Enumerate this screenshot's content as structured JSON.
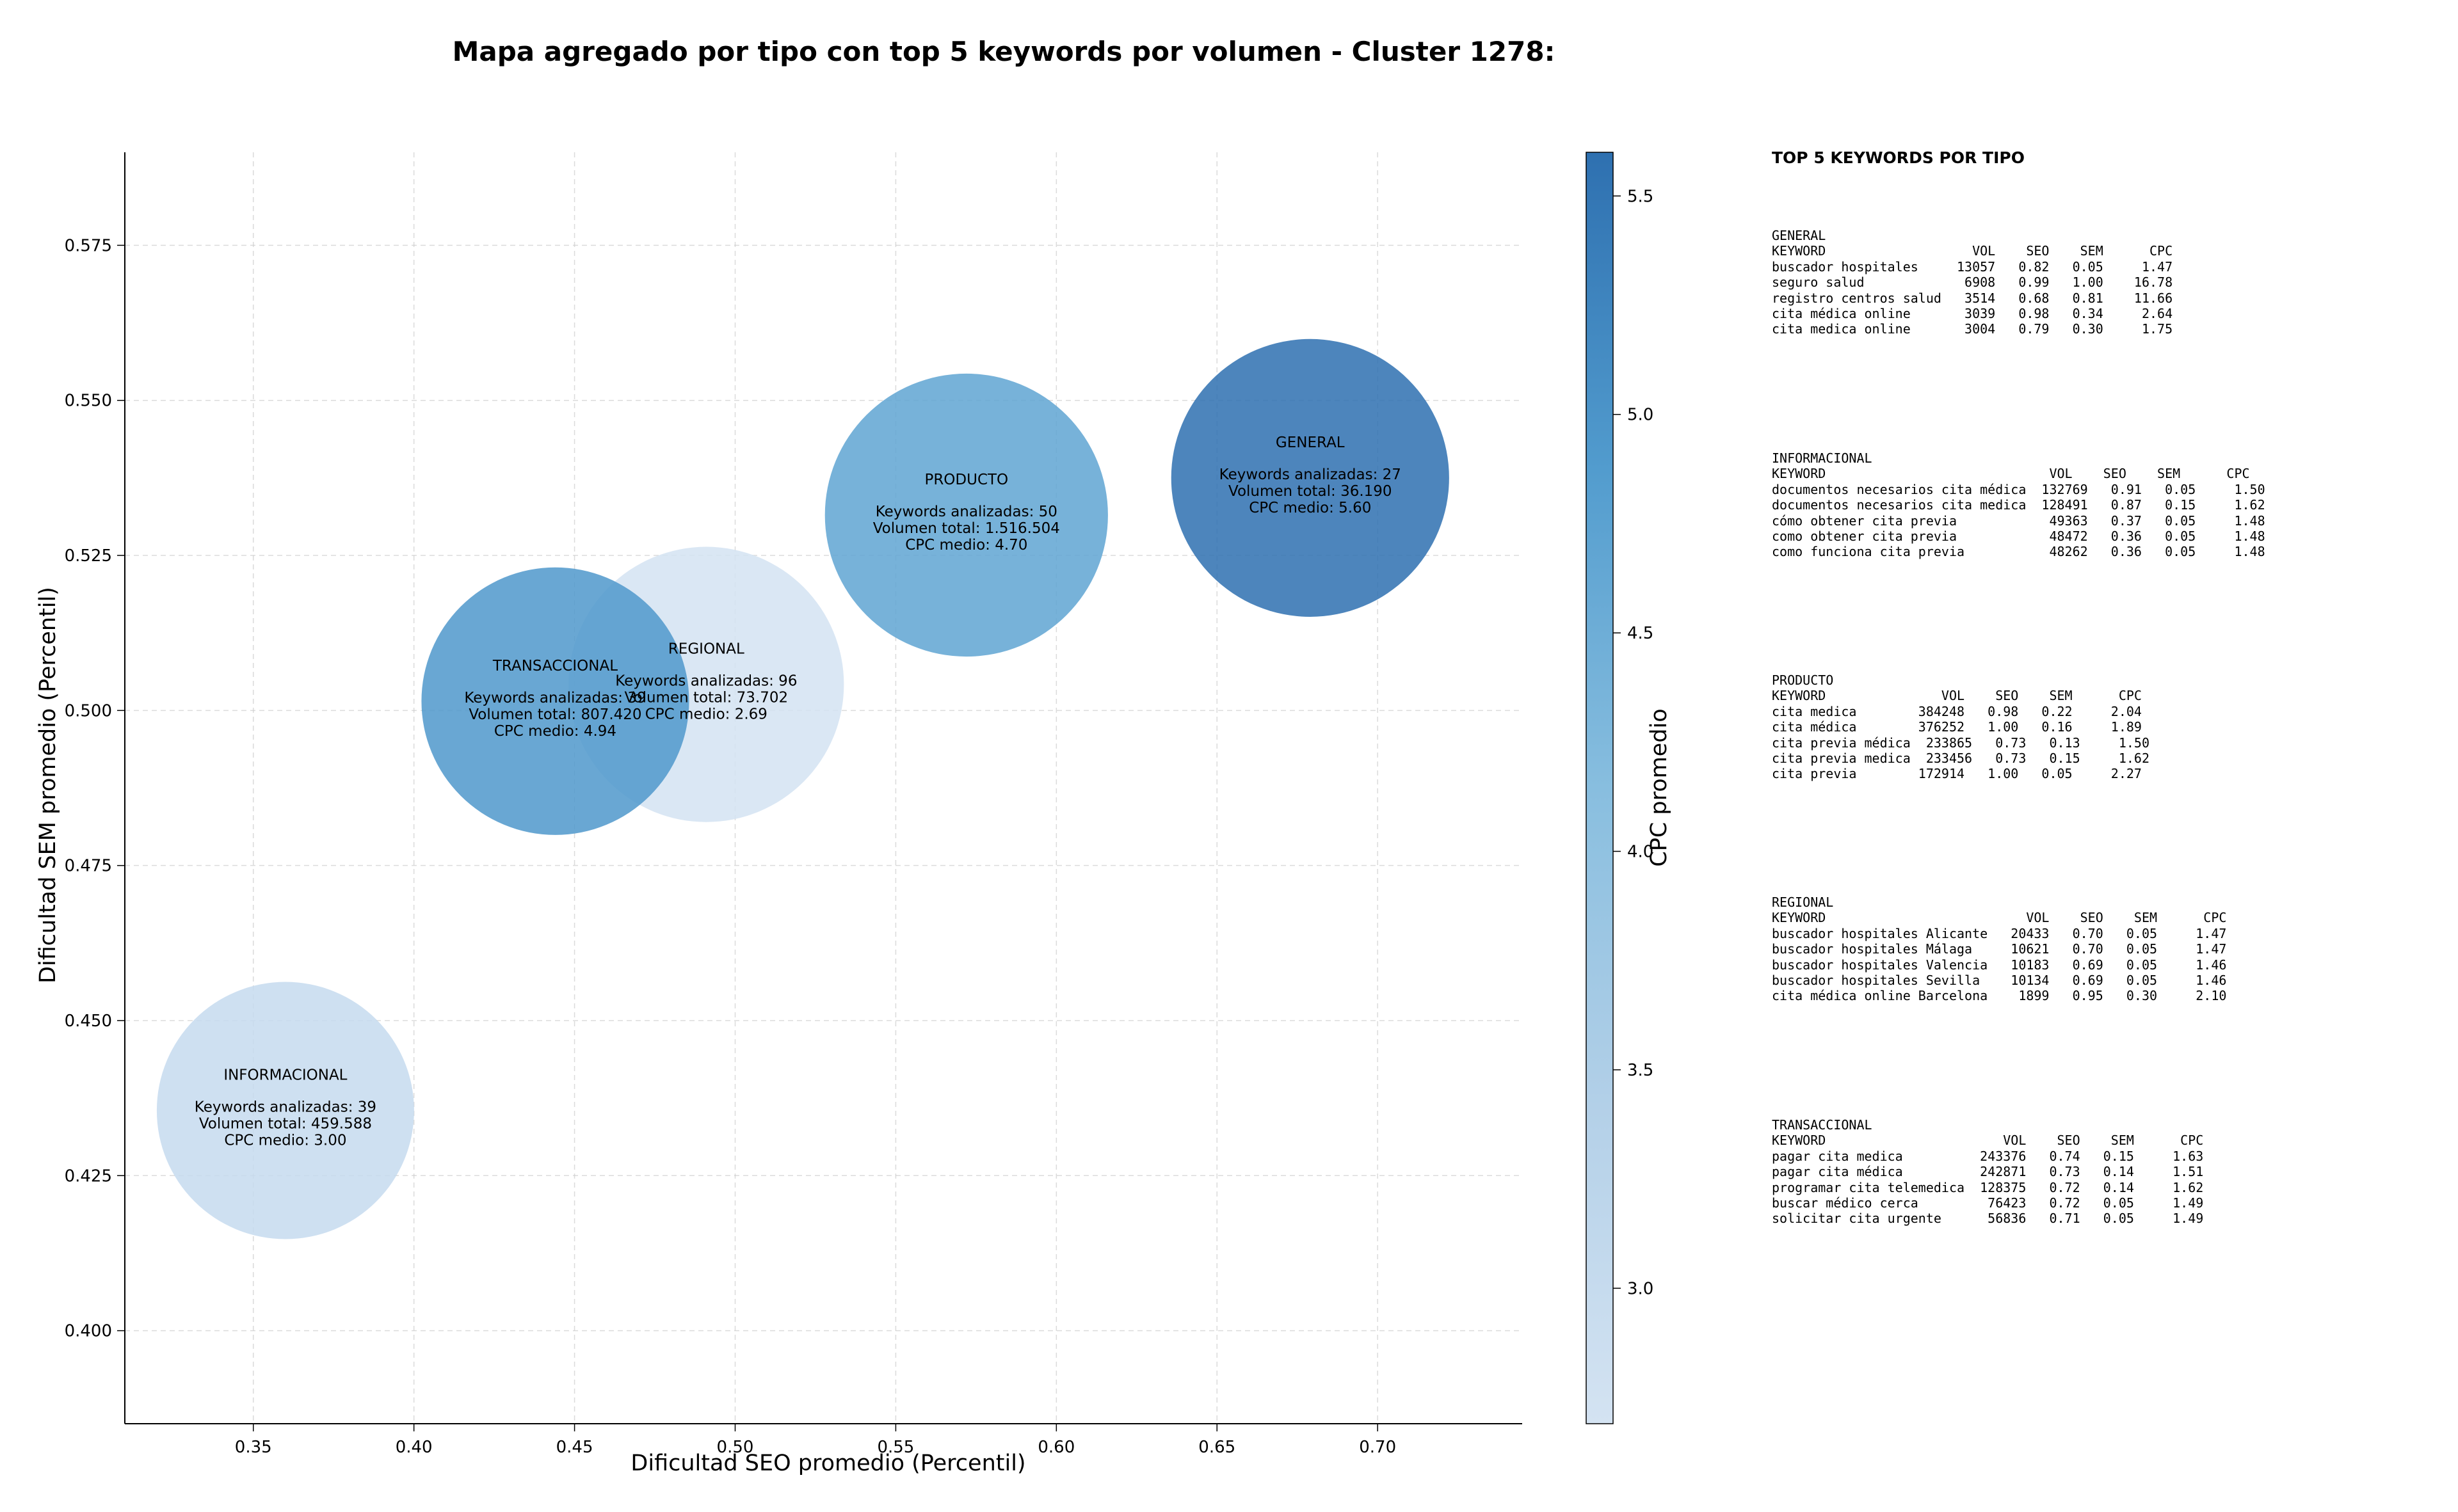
{
  "chart_data": {
    "type": "scatter",
    "title": "Mapa agregado por tipo con top 5 keywords por volumen - Cluster 1278:",
    "xlabel": "Dificultad SEO promedio (Percentil)",
    "ylabel": "Dificultad SEM promedio (Percentil)",
    "xlim": [
      0.31,
      0.745
    ],
    "ylim": [
      0.385,
      0.59
    ],
    "xticks": [
      "0.35",
      "0.40",
      "0.45",
      "0.50",
      "0.55",
      "0.60",
      "0.65",
      "0.70"
    ],
    "yticks": [
      "0.400",
      "0.425",
      "0.450",
      "0.475",
      "0.500",
      "0.525",
      "0.550",
      "0.575"
    ],
    "grid": true,
    "colorbar": {
      "label": "CPC promedio",
      "range": [
        2.69,
        5.6
      ],
      "ticks": [
        "3.0",
        "3.5",
        "4.0",
        "4.5",
        "5.0",
        "5.5"
      ],
      "colors": [
        "#d4e3f2",
        "#2e70b0"
      ]
    },
    "points": [
      {
        "name": "INFORMACIONAL",
        "x": 0.36,
        "y": 0.4355,
        "size": 1.0,
        "keywords_label": "Keywords analizadas: 39",
        "volume_label": "Volumen total: 459.588",
        "cpc_label": "CPC medio: 3.00",
        "cpc": 3.0
      },
      {
        "name": "REGIONAL",
        "x": 0.491,
        "y": 0.5042,
        "size": 1.07,
        "keywords_label": "Keywords analizadas: 96",
        "volume_label": "Volumen total: 73.702",
        "cpc_label": "CPC medio: 2.69",
        "cpc": 2.69
      },
      {
        "name": "TRANSACCIONAL",
        "x": 0.444,
        "y": 0.5015,
        "size": 1.04,
        "keywords_label": "Keywords analizadas: 39",
        "volume_label": "Volumen total: 807.420",
        "cpc_label": "CPC medio: 4.94",
        "cpc": 4.94
      },
      {
        "name": "PRODUCTO",
        "x": 0.572,
        "y": 0.5315,
        "size": 1.1,
        "keywords_label": "Keywords analizadas: 50",
        "volume_label": "Volumen total: 1.516.504",
        "cpc_label": "CPC medio: 4.70",
        "cpc": 4.7
      },
      {
        "name": "GENERAL",
        "x": 0.679,
        "y": 0.5375,
        "size": 1.08,
        "keywords_label": "Keywords analizadas: 27",
        "volume_label": "Volumen total: 36.190",
        "cpc_label": "CPC medio: 5.60",
        "cpc": 5.6
      }
    ]
  },
  "top_keywords": {
    "heading": "TOP 5 KEYWORDS POR TIPO",
    "groups": [
      {
        "name": "GENERAL",
        "lines": [
          "GENERAL",
          "KEYWORD                   VOL    SEO    SEM      CPC",
          "buscador hospitales     13057   0.82   0.05     1.47",
          "seguro salud             6908   0.99   1.00    16.78",
          "registro centros salud   3514   0.68   0.81    11.66",
          "cita médica online       3039   0.98   0.34     2.64",
          "cita medica online       3004   0.79   0.30     1.75"
        ]
      },
      {
        "name": "INFORMACIONAL",
        "lines": [
          "INFORMACIONAL",
          "KEYWORD                             VOL    SEO    SEM      CPC",
          "documentos necesarios cita médica  132769   0.91   0.05     1.50",
          "documentos necesarios cita medica  128491   0.87   0.15     1.62",
          "cómo obtener cita previa            49363   0.37   0.05     1.48",
          "como obtener cita previa            48472   0.36   0.05     1.48",
          "como funciona cita previa           48262   0.36   0.05     1.48"
        ]
      },
      {
        "name": "PRODUCTO",
        "lines": [
          "PRODUCTO",
          "KEYWORD               VOL    SEO    SEM      CPC",
          "cita medica        384248   0.98   0.22     2.04",
          "cita médica        376252   1.00   0.16     1.89",
          "cita previa médica  233865   0.73   0.13     1.50",
          "cita previa medica  233456   0.73   0.15     1.62",
          "cita previa        172914   1.00   0.05     2.27"
        ]
      },
      {
        "name": "REGIONAL",
        "lines": [
          "REGIONAL",
          "KEYWORD                          VOL    SEO    SEM      CPC",
          "buscador hospitales Alicante   20433   0.70   0.05     1.47",
          "buscador hospitales Málaga     10621   0.70   0.05     1.47",
          "buscador hospitales Valencia   10183   0.69   0.05     1.46",
          "buscador hospitales Sevilla    10134   0.69   0.05     1.46",
          "cita médica online Barcelona    1899   0.95   0.30     2.10"
        ]
      },
      {
        "name": "TRANSACCIONAL",
        "lines": [
          "TRANSACCIONAL",
          "KEYWORD                       VOL    SEO    SEM      CPC",
          "pagar cita medica          243376   0.74   0.15     1.63",
          "pagar cita médica          242871   0.73   0.14     1.51",
          "programar cita telemedica  128375   0.72   0.14     1.62",
          "buscar médico cerca         76423   0.72   0.05     1.49",
          "solicitar cita urgente      56836   0.71   0.05     1.49"
        ]
      }
    ]
  }
}
